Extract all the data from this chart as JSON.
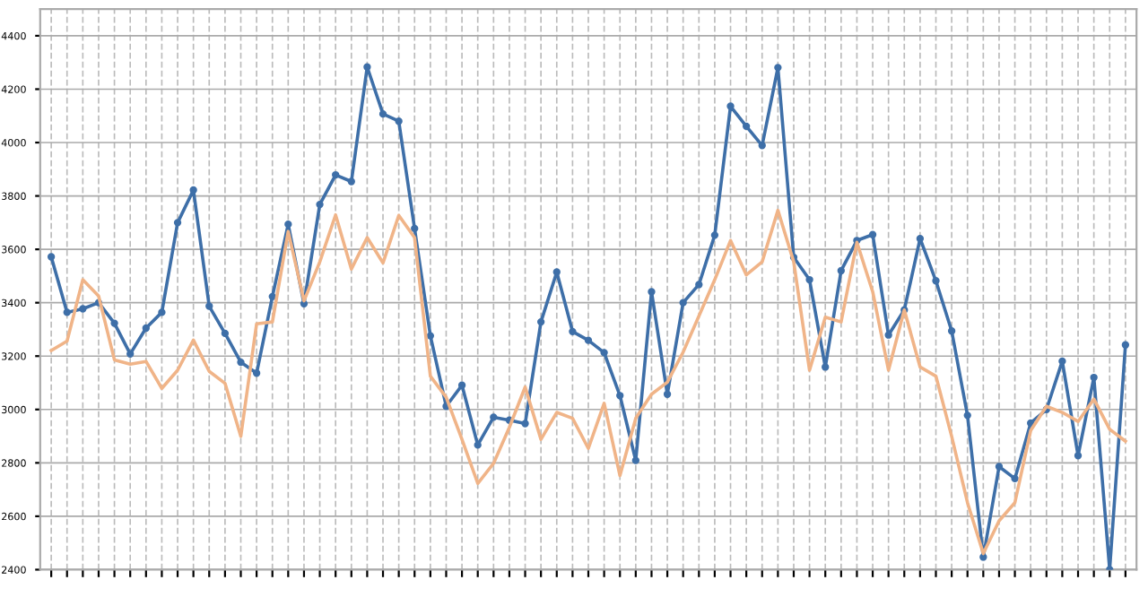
{
  "chart_data": {
    "type": "line",
    "categories": [
      null,
      null,
      null,
      null,
      null,
      null,
      null,
      null,
      null,
      null,
      null,
      null,
      null,
      null,
      null,
      null,
      null,
      null,
      null,
      null,
      null,
      null,
      null,
      null,
      null,
      null,
      null,
      null,
      null,
      null,
      null,
      null,
      null,
      null,
      null,
      null,
      null,
      null,
      null,
      null,
      null,
      null,
      null,
      null,
      null,
      null,
      null,
      null,
      null,
      null,
      null,
      null,
      null,
      null,
      null,
      null,
      null,
      null,
      null,
      null,
      null,
      null,
      null,
      null,
      null,
      null,
      null,
      null,
      null
    ],
    "series": [
      {
        "color": "#3e6fa8",
        "marker": "circle",
        "values": [
          3572,
          3364,
          3377,
          3400,
          3323,
          3208,
          3305,
          3364,
          3700,
          3822,
          3387,
          3285,
          3177,
          3136,
          3423,
          3694,
          3396,
          3768,
          3879,
          3854,
          4283,
          4107,
          4080,
          3678,
          3276,
          3012,
          3091,
          2867,
          2971,
          2960,
          2947,
          3328,
          3515,
          3292,
          3259,
          3213,
          3052,
          2809,
          3441,
          3057,
          3400,
          3468,
          3653,
          4136,
          4061,
          3989,
          4281,
          3570,
          3486,
          3159,
          3520,
          3633,
          3655,
          3279,
          3373,
          3640,
          3482,
          3294,
          2978,
          2447,
          2786,
          2741,
          2949,
          3000,
          3181,
          2827,
          3120,
          2400,
          3242
        ]
      },
      {
        "color": "#f0b488",
        "marker": "none",
        "values": [
          3221,
          3256,
          3486,
          3425,
          3186,
          3170,
          3180,
          3079,
          3147,
          3260,
          3143,
          3098,
          2899,
          3321,
          3328,
          3667,
          3407,
          3553,
          3729,
          3526,
          3644,
          3549,
          3727,
          3644,
          3125,
          3046,
          2888,
          2723,
          2798,
          2933,
          3084,
          2888,
          2989,
          2967,
          2854,
          3023,
          2752,
          2967,
          3057,
          3102,
          3215,
          3350,
          3486,
          3633,
          3504,
          3553,
          3746,
          3553,
          3147,
          3346,
          3328,
          3626,
          3441,
          3147,
          3373,
          3159,
          3125,
          2899,
          2651,
          2460,
          2583,
          2651,
          2921,
          3012,
          2989,
          2955,
          3039,
          2926,
          2881
        ]
      }
    ],
    "ylim": [
      2400,
      4500
    ],
    "yticks": [
      2400,
      2600,
      2800,
      3000,
      3200,
      3400,
      3600,
      3800,
      4000,
      4200,
      4400
    ],
    "grid": true,
    "tick_labels": "y",
    "line_style": "solid"
  }
}
